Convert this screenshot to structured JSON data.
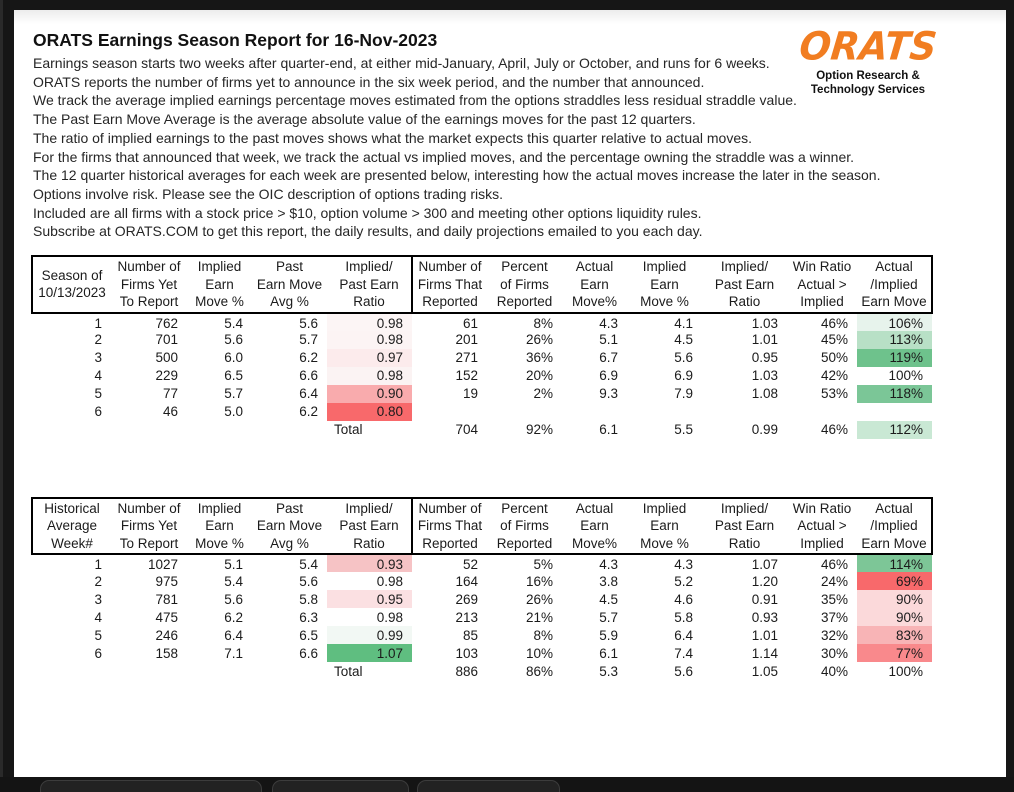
{
  "page": {
    "title": "ORATS Earnings Season Report for 16-Nov-2023",
    "intro_lines": [
      "Earnings season starts two weeks after quarter-end, at either mid-January, April, July or October, and runs for 6 weeks.",
      "ORATS reports the number of firms yet to announce in the six week period, and the number that announced.",
      "We track the average implied earnings percentage moves estimated from the options straddles less residual straddle value.",
      "The Past Earn Move Average is the average absolute value of the earnings moves for the past 12 quarters.",
      "The ratio of implied earnings to the past moves shows what the market expects this quarter relative to actual moves.",
      "For the firms that announced that week, we track the actual vs implied moves, and the percentage owning the straddle was a winner.",
      "The 12 quarter historical averages for each week are presented below, interesting how the actual moves increase the later in the season.",
      "Options involve risk. Please see the OIC description of options trading risks.",
      "Included are all firms with a stock price > $10, option volume > 300 and meeting other options liquidity rules.",
      "Subscribe at ORATS.COM to get this report, the daily results, and daily projections emailed to you each day."
    ],
    "logo": {
      "word": "ORATS",
      "subtext_line1": "Option Research &",
      "subtext_line2": "Technology Services",
      "brand_color": "#f17d21"
    }
  },
  "colors": {
    "scale_red": "#f8696b",
    "scale_green": "#63be7b",
    "frame_dark": "#161616"
  },
  "tables": [
    {
      "name": "current-season",
      "headers": [
        [
          "Season of",
          "10/13/2023",
          ""
        ],
        [
          "Number of",
          "Firms Yet",
          "To Report"
        ],
        [
          "Implied",
          "Earn",
          "Move %"
        ],
        [
          "Past",
          "Earn Move",
          "Avg %"
        ],
        [
          "Implied/",
          "Past Earn",
          "Ratio"
        ],
        [
          "Number of",
          "Firms That",
          "Reported"
        ],
        [
          "Percent",
          "of Firms",
          "Reported"
        ],
        [
          "Actual",
          "Earn",
          "Move%"
        ],
        [
          "Implied",
          "Earn",
          "Move %"
        ],
        [
          "Implied/",
          "Past Earn",
          "Ratio"
        ],
        [
          "Win Ratio",
          "Actual >",
          "Implied"
        ],
        [
          "Actual",
          "/Implied",
          "Earn Move"
        ]
      ],
      "rows": [
        {
          "cells": [
            "1",
            "762",
            "5.4",
            "5.6",
            "0.98",
            "61",
            "8%",
            "4.3",
            "4.1",
            "1.03",
            "46%",
            "106%"
          ],
          "bg": {
            "4": "#fcf5f5",
            "11": "#e7f3ec"
          }
        },
        {
          "cells": [
            "2",
            "701",
            "5.6",
            "5.7",
            "0.98",
            "201",
            "26%",
            "5.1",
            "4.5",
            "1.01",
            "45%",
            "113%"
          ],
          "bg": {
            "4": "#fcf4f4",
            "11": "#b8e0c6"
          }
        },
        {
          "cells": [
            "3",
            "500",
            "6.0",
            "6.2",
            "0.97",
            "271",
            "36%",
            "6.7",
            "5.6",
            "0.95",
            "50%",
            "119%"
          ],
          "bg": {
            "4": "#fcebec",
            "11": "#6ec28c"
          }
        },
        {
          "cells": [
            "4",
            "229",
            "6.5",
            "6.6",
            "0.98",
            "152",
            "20%",
            "6.9",
            "6.9",
            "1.03",
            "42%",
            "100%"
          ],
          "bg": {
            "4": "#fbf3f3"
          }
        },
        {
          "cells": [
            "5",
            "77",
            "5.7",
            "6.4",
            "0.90",
            "19",
            "2%",
            "9.3",
            "7.9",
            "1.08",
            "53%",
            "118%"
          ],
          "bg": {
            "4": "#f9abad",
            "11": "#7bc697"
          }
        },
        {
          "cells": [
            "6",
            "46",
            "5.0",
            "6.2",
            "0.80",
            "",
            "",
            "",
            "",
            "",
            "",
            ""
          ],
          "bg": {
            "4": "#f8696b"
          }
        }
      ],
      "total_row": {
        "cells": [
          "",
          "",
          "",
          "",
          "Total",
          "704",
          "92%",
          "6.1",
          "5.5",
          "0.99",
          "46%",
          "112%"
        ],
        "bg": {
          "11": "#c9e8d4"
        }
      }
    },
    {
      "name": "historical-average",
      "headers": [
        [
          "Historical",
          "Average",
          "Week#"
        ],
        [
          "Number of",
          "Firms Yet",
          "To Report"
        ],
        [
          "Implied",
          "Earn",
          "Move %"
        ],
        [
          "Past",
          "Earn Move",
          "Avg %"
        ],
        [
          "Implied/",
          "Past Earn",
          "Ratio"
        ],
        [
          "Number of",
          "Firms That",
          "Reported"
        ],
        [
          "Percent",
          "of Firms",
          "Reported"
        ],
        [
          "Actual",
          "Earn",
          "Move%"
        ],
        [
          "Implied",
          "Earn",
          "Move %"
        ],
        [
          "Implied/",
          "Past Earn",
          "Ratio"
        ],
        [
          "Win Ratio",
          "Actual >",
          "Implied"
        ],
        [
          "Actual",
          "/Implied",
          "Earn Move"
        ]
      ],
      "rows": [
        {
          "cells": [
            "1",
            "1027",
            "5.1",
            "5.4",
            "0.93",
            "52",
            "5%",
            "4.3",
            "4.3",
            "1.07",
            "46%",
            "114%"
          ],
          "bg": {
            "4": "#f6c3c5",
            "11": "#7dc697"
          }
        },
        {
          "cells": [
            "2",
            "975",
            "5.4",
            "5.6",
            "0.98",
            "164",
            "16%",
            "3.8",
            "5.2",
            "1.20",
            "24%",
            "69%"
          ],
          "bg": {
            "11": "#f8696b"
          }
        },
        {
          "cells": [
            "3",
            "781",
            "5.6",
            "5.8",
            "0.95",
            "269",
            "26%",
            "4.5",
            "4.6",
            "0.91",
            "35%",
            "90%"
          ],
          "bg": {
            "4": "#fbe0e2",
            "11": "#fbd9da"
          }
        },
        {
          "cells": [
            "4",
            "475",
            "6.2",
            "6.3",
            "0.98",
            "213",
            "21%",
            "5.7",
            "5.8",
            "0.93",
            "37%",
            "90%"
          ],
          "bg": {
            "11": "#fbd9da"
          }
        },
        {
          "cells": [
            "5",
            "246",
            "6.4",
            "6.5",
            "0.99",
            "85",
            "8%",
            "5.9",
            "6.4",
            "1.01",
            "32%",
            "83%"
          ],
          "bg": {
            "4": "#f2f8f4",
            "11": "#f8b4b6"
          }
        },
        {
          "cells": [
            "6",
            "158",
            "7.1",
            "6.6",
            "1.07",
            "103",
            "10%",
            "6.1",
            "7.4",
            "1.14",
            "30%",
            "77%"
          ],
          "bg": {
            "4": "#5fbe80",
            "11": "#f9898c"
          }
        }
      ],
      "total_row": {
        "cells": [
          "",
          "",
          "",
          "",
          "Total",
          "886",
          "86%",
          "5.3",
          "5.6",
          "1.05",
          "40%",
          "100%"
        ],
        "bg": {}
      }
    }
  ]
}
